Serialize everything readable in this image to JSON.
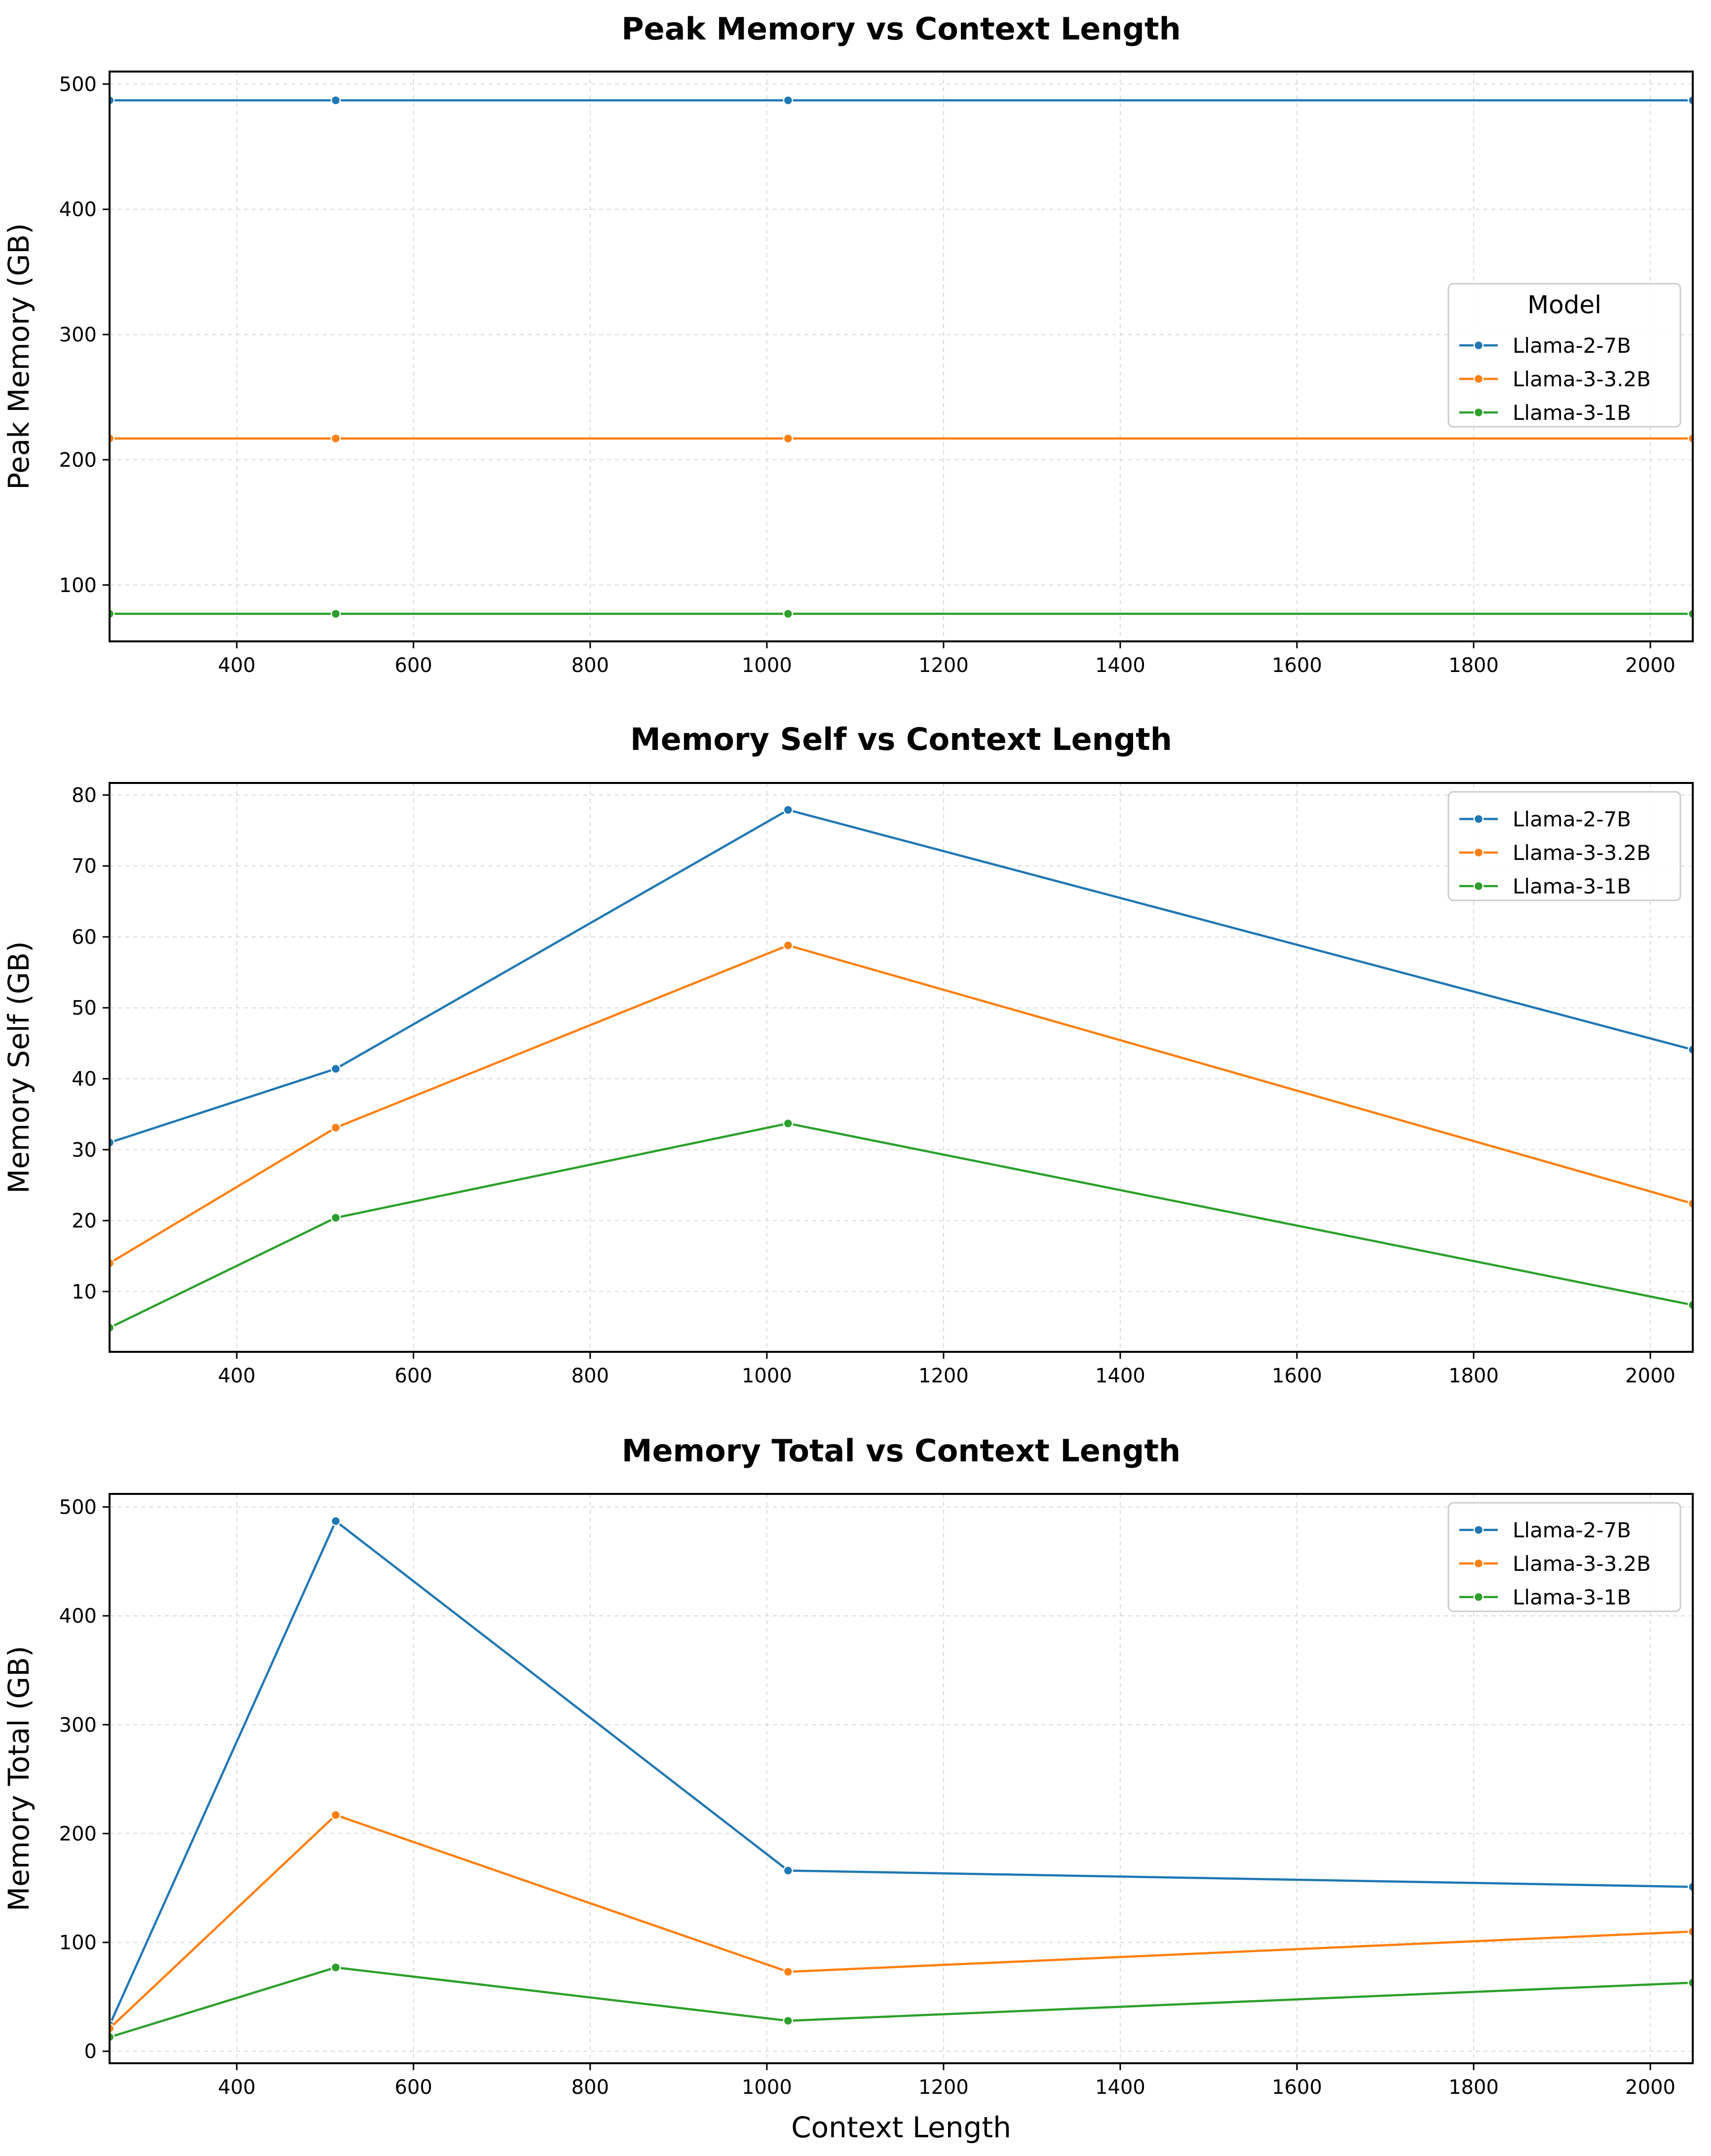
{
  "chart_data": [
    {
      "type": "line",
      "title": "Peak Memory vs Context Length",
      "xlabel": "",
      "ylabel": "Peak Memory (GB)",
      "x": [
        256,
        512,
        1024,
        2048
      ],
      "xlim": [
        256,
        2048
      ],
      "ylim": [
        55,
        510
      ],
      "xticks": [
        400,
        600,
        800,
        1000,
        1200,
        1400,
        1600,
        1800,
        2000
      ],
      "yticks": [
        100,
        200,
        300,
        400,
        500
      ],
      "grid": true,
      "legend": {
        "title": "Model",
        "placement": "center-right"
      },
      "series": [
        {
          "name": "Llama-2-7B",
          "color": "#1f77b4",
          "values": [
            487,
            487,
            487,
            487
          ]
        },
        {
          "name": "Llama-3-3.2B",
          "color": "#ff7f0e",
          "values": [
            217,
            217,
            217,
            217
          ]
        },
        {
          "name": "Llama-3-1B",
          "color": "#2ca02c",
          "values": [
            77,
            77,
            77,
            77
          ]
        }
      ]
    },
    {
      "type": "line",
      "title": "Memory Self vs Context Length",
      "xlabel": "",
      "ylabel": "Memory Self (GB)",
      "x": [
        256,
        512,
        1024,
        2048
      ],
      "xlim": [
        256,
        2048
      ],
      "ylim": [
        1.5,
        81.7
      ],
      "xticks": [
        400,
        600,
        800,
        1000,
        1200,
        1400,
        1600,
        1800,
        2000
      ],
      "yticks": [
        10,
        20,
        30,
        40,
        50,
        60,
        70,
        80
      ],
      "grid": true,
      "legend": {
        "title": "",
        "placement": "top-right"
      },
      "series": [
        {
          "name": "Llama-2-7B",
          "color": "#1f77b4",
          "values": [
            31.0,
            41.4,
            77.9,
            44.1
          ]
        },
        {
          "name": "Llama-3-3.2B",
          "color": "#ff7f0e",
          "values": [
            14.0,
            33.1,
            58.8,
            22.4
          ]
        },
        {
          "name": "Llama-3-1B",
          "color": "#2ca02c",
          "values": [
            4.9,
            20.4,
            33.7,
            8.1
          ]
        }
      ]
    },
    {
      "type": "line",
      "title": "Memory Total vs Context Length",
      "xlabel": "Context Length",
      "ylabel": "Memory Total (GB)",
      "x": [
        256,
        512,
        1024,
        2048
      ],
      "xlim": [
        256,
        2048
      ],
      "ylim": [
        -11,
        512
      ],
      "xticks": [
        400,
        600,
        800,
        1000,
        1200,
        1400,
        1600,
        1800,
        2000
      ],
      "yticks": [
        0,
        100,
        200,
        300,
        400,
        500
      ],
      "grid": true,
      "legend": {
        "title": "",
        "placement": "top-right"
      },
      "series": [
        {
          "name": "Llama-2-7B",
          "color": "#1f77b4",
          "values": [
            24,
            487,
            166,
            151
          ]
        },
        {
          "name": "Llama-3-3.2B",
          "color": "#ff7f0e",
          "values": [
            21,
            217,
            73,
            110
          ]
        },
        {
          "name": "Llama-3-1B",
          "color": "#2ca02c",
          "values": [
            13,
            77,
            28,
            63
          ]
        }
      ]
    }
  ]
}
